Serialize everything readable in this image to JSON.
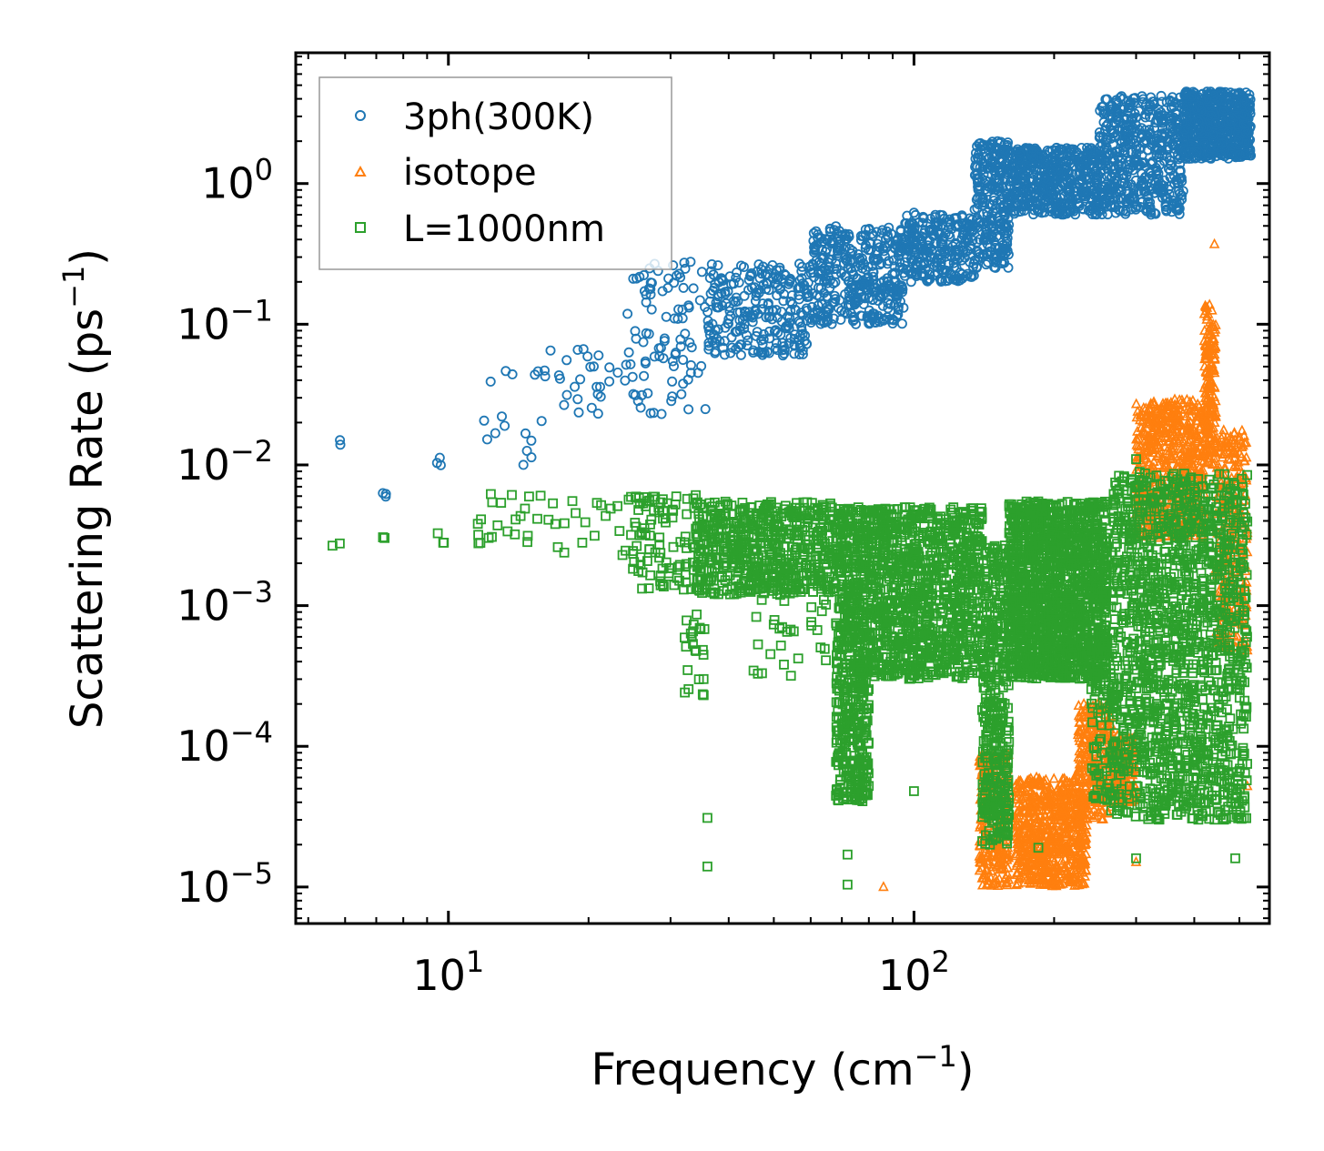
{
  "chart_data": {
    "type": "scatter",
    "title": "",
    "xlabel": "Frequency (cm",
    "xlabel_exp": "−1",
    "xlabel_close": ")",
    "ylabel": "Scattering Rate (ps",
    "ylabel_exp": "−1",
    "ylabel_close": ")",
    "xscale": "log",
    "yscale": "log",
    "xlim": [
      4.7,
      580
    ],
    "ylim": [
      5.5e-06,
      8.5
    ],
    "legend_position": "top-left",
    "x_ticks": [
      {
        "value": 10,
        "base": "10",
        "exp": "1"
      },
      {
        "value": 100,
        "base": "10",
        "exp": "2"
      }
    ],
    "y_ticks": [
      {
        "value": 1,
        "base": "10",
        "exp": "0"
      },
      {
        "value": 0.1,
        "base": "10",
        "exp": "−1"
      },
      {
        "value": 0.01,
        "base": "10",
        "exp": "−2"
      },
      {
        "value": 0.001,
        "base": "10",
        "exp": "−3"
      },
      {
        "value": 0.0001,
        "base": "10",
        "exp": "−4"
      },
      {
        "value": 1e-05,
        "base": "10",
        "exp": "−5"
      }
    ],
    "series": [
      {
        "name": "3ph(300K)",
        "marker": "circle",
        "color": "#1f77b4",
        "bands": [
          {
            "x": [
              5.6,
              6.0
            ],
            "y": [
              0.0135,
              0.015
            ],
            "n": 2
          },
          {
            "x": [
              7.2,
              7.4
            ],
            "y": [
              0.005,
              0.0065
            ],
            "n": 3
          },
          {
            "x": [
              9.0,
              9.8
            ],
            "y": [
              0.0085,
              0.0195
            ],
            "n": 3
          },
          {
            "x": [
              11.5,
              16
            ],
            "y": [
              0.008,
              0.06
            ],
            "n": 16
          },
          {
            "x": [
              16,
              24
            ],
            "y": [
              0.023,
              0.07
            ],
            "n": 28
          },
          {
            "x": [
              24,
              36
            ],
            "y": [
              0.023,
              0.28
            ],
            "n": 90
          },
          {
            "x": [
              36,
              60
            ],
            "y": [
              0.06,
              0.27
            ],
            "n": 260
          },
          {
            "x": [
              60,
              95
            ],
            "y": [
              0.1,
              0.5
            ],
            "n": 380
          },
          {
            "x": [
              95,
              135
            ],
            "y": [
              0.2,
              0.6
            ],
            "n": 260
          },
          {
            "x": [
              135,
              160
            ],
            "y": [
              0.25,
              2.0
            ],
            "n": 260
          },
          {
            "x": [
              160,
              250
            ],
            "y": [
              0.6,
              1.8
            ],
            "n": 500
          },
          {
            "x": [
              250,
              380
            ],
            "y": [
              0.6,
              4.2
            ],
            "n": 500
          },
          {
            "x": [
              380,
              530
            ],
            "y": [
              1.5,
              4.5
            ],
            "n": 600
          }
        ],
        "points": [
          {
            "x": 100,
            "y": 0.62
          },
          {
            "x": 28.7,
            "y": 0.023
          }
        ]
      },
      {
        "name": "isotope",
        "marker": "triangle",
        "color": "#ff7f0e",
        "bands": [
          {
            "x": [
              138,
              160
            ],
            "y": [
              1e-05,
              9e-05
            ],
            "n": 240
          },
          {
            "x": [
              165,
              235
            ],
            "y": [
              1e-05,
              6e-05
            ],
            "n": 700
          },
          {
            "x": [
              225,
              265
            ],
            "y": [
              3e-05,
              0.0002
            ],
            "n": 260
          },
          {
            "x": [
              265,
              300
            ],
            "y": [
              4e-05,
              0.00012
            ],
            "n": 160
          },
          {
            "x": [
              300,
              360
            ],
            "y": [
              0.003,
              0.028
            ],
            "n": 320
          },
          {
            "x": [
              360,
              420
            ],
            "y": [
              0.003,
              0.03
            ],
            "n": 300
          },
          {
            "x": [
              420,
              445
            ],
            "y": [
              0.01,
              0.14
            ],
            "n": 170
          },
          {
            "x": [
              445,
              520
            ],
            "y": [
              0.0005,
              0.018
            ],
            "n": 280
          }
        ],
        "points": [
          {
            "x": 86,
            "y": 1e-05
          },
          {
            "x": 442,
            "y": 0.37
          },
          {
            "x": 520,
            "y": 5.2e-05
          },
          {
            "x": 520,
            "y": 0.00048
          },
          {
            "x": 300,
            "y": 1.5e-05
          }
        ]
      },
      {
        "name": "L=1000nm",
        "marker": "square",
        "color": "#2ca02c",
        "bands": [
          {
            "x": [
              5.6,
              6.0
            ],
            "y": [
              0.0026,
              0.0031
            ],
            "n": 2
          },
          {
            "x": [
              7.2,
              7.4
            ],
            "y": [
              0.003,
              0.0032
            ],
            "n": 3
          },
          {
            "x": [
              9,
              9.8
            ],
            "y": [
              0.0028,
              0.0033
            ],
            "n": 3
          },
          {
            "x": [
              11.5,
              24
            ],
            "y": [
              0.0022,
              0.0065
            ],
            "n": 40
          },
          {
            "x": [
              24,
              34
            ],
            "y": [
              0.0013,
              0.0062
            ],
            "n": 100
          },
          {
            "x": [
              32,
              36
            ],
            "y": [
              0.00023,
              0.0009
            ],
            "n": 24
          },
          {
            "x": [
              34,
              68
            ],
            "y": [
              0.0012,
              0.0055
            ],
            "n": 600
          },
          {
            "x": [
              45,
              65
            ],
            "y": [
              0.0003,
              0.0012
            ],
            "n": 30
          },
          {
            "x": [
              68,
              80
            ],
            "y": [
              4e-05,
              0.005
            ],
            "n": 600
          },
          {
            "x": [
              80,
              140
            ],
            "y": [
              0.0003,
              0.005
            ],
            "n": 1000
          },
          {
            "x": [
              140,
              160
            ],
            "y": [
              2e-05,
              0.0028
            ],
            "n": 400
          },
          {
            "x": [
              160,
              260
            ],
            "y": [
              0.0003,
              0.0055
            ],
            "n": 1500
          },
          {
            "x": [
              240,
              265
            ],
            "y": [
              4e-05,
              0.0006
            ],
            "n": 80
          },
          {
            "x": [
              265,
              520
            ],
            "y": [
              3e-05,
              0.009
            ],
            "n": 1500
          }
        ],
        "points": [
          {
            "x": 36,
            "y": 3.1e-05
          },
          {
            "x": 36,
            "y": 1.4e-05
          },
          {
            "x": 72,
            "y": 1.7e-05
          },
          {
            "x": 72,
            "y": 1.04e-05
          },
          {
            "x": 100,
            "y": 4.8e-05
          },
          {
            "x": 145,
            "y": 2.5e-05
          },
          {
            "x": 185,
            "y": 1.9e-05
          },
          {
            "x": 300,
            "y": 1.6e-05
          },
          {
            "x": 490,
            "y": 1.6e-05
          },
          {
            "x": 300,
            "y": 0.011
          },
          {
            "x": 490,
            "y": 4.3e-05
          }
        ]
      }
    ]
  }
}
